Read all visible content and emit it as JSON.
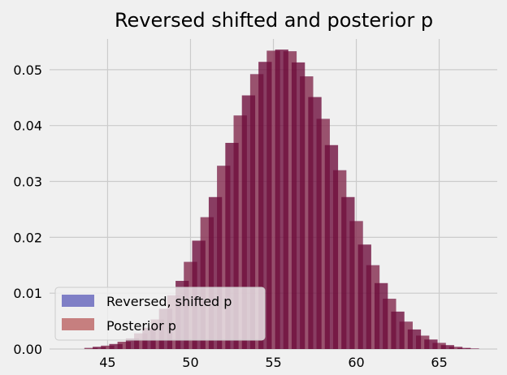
{
  "chart_data": {
    "type": "bar",
    "title": "Reversed shifted and posterior p",
    "xlabel": "",
    "ylabel": "",
    "xlim": [
      41.5,
      68.5
    ],
    "ylim": [
      0,
      0.0555
    ],
    "x_ticks": [
      45,
      50,
      55,
      60,
      65
    ],
    "y_ticks": [
      0.0,
      0.01,
      0.02,
      0.03,
      0.04,
      0.05
    ],
    "y_tick_labels": [
      "0.00",
      "0.01",
      "0.02",
      "0.03",
      "0.04",
      "0.05"
    ],
    "grid": true,
    "legend_position": "lower-left",
    "bar_width": 0.8,
    "x": [
      44,
      45,
      46,
      47,
      48,
      49,
      50,
      51,
      52,
      53,
      54,
      55,
      56,
      57,
      58,
      59,
      60,
      61,
      62,
      63,
      64,
      65,
      66,
      67
    ],
    "series": [
      {
        "name": "Reversed, shifted p",
        "color": "#3333aa",
        "values": [
          0.0002,
          0.0006,
          0.0013,
          0.0028,
          0.0053,
          0.0096,
          0.0156,
          0.0236,
          0.0328,
          0.0418,
          0.0492,
          0.0534,
          0.0533,
          0.0488,
          0.0412,
          0.032,
          0.0229,
          0.015,
          0.009,
          0.0049,
          0.0024,
          0.0011,
          0.0004,
          0.0001
        ]
      },
      {
        "name": "Posterior p",
        "color": "#aa3333",
        "values": [
          0.0002,
          0.0006,
          0.0013,
          0.0028,
          0.0053,
          0.0096,
          0.0156,
          0.0236,
          0.0328,
          0.0418,
          0.0492,
          0.0534,
          0.0533,
          0.0488,
          0.0412,
          0.032,
          0.0229,
          0.015,
          0.009,
          0.0049,
          0.0024,
          0.0011,
          0.0004,
          0.0001
        ]
      }
    ],
    "overlay_x": [
      44.5,
      45.5,
      46.5,
      47.5,
      48.5,
      49.5,
      50.5,
      51.5,
      52.5,
      53.5,
      54.5,
      55.5,
      56.5,
      57.5,
      58.5,
      59.5,
      60.5,
      61.5,
      62.5,
      63.5,
      64.5,
      65.5,
      66.5
    ],
    "overlay_values": [
      0.0004,
      0.0009,
      0.0019,
      0.0038,
      0.0072,
      0.0122,
      0.0194,
      0.0272,
      0.0369,
      0.0454,
      0.0514,
      0.0536,
      0.0513,
      0.0451,
      0.0365,
      0.0272,
      0.0187,
      0.0118,
      0.0067,
      0.0035,
      0.0017,
      0.0007,
      0.0002
    ]
  }
}
